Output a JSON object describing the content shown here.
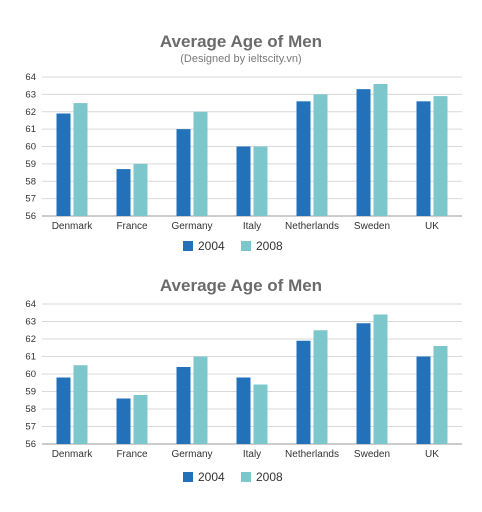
{
  "chart_data": [
    {
      "type": "bar",
      "title": "Average Age of Men",
      "subtitle": "(Designed by ieltscity.vn)",
      "categories": [
        "Denmark",
        "France",
        "Germany",
        "Italy",
        "Netherlands",
        "Sweden",
        "UK"
      ],
      "series": [
        {
          "name": "2004",
          "color": "#2372b9",
          "values": [
            61.9,
            58.7,
            61.0,
            60.0,
            62.6,
            63.3,
            62.6
          ]
        },
        {
          "name": "2008",
          "color": "#7cc7cb",
          "values": [
            62.5,
            59.0,
            62.0,
            60.0,
            63.0,
            63.6,
            62.9
          ]
        }
      ],
      "yticks": [
        56,
        57,
        58,
        59,
        60,
        61,
        62,
        63,
        64
      ],
      "ylim": [
        56,
        64
      ],
      "grid": true,
      "legend_position": "bottom-center"
    },
    {
      "type": "bar",
      "title": "Average Age of Men",
      "categories": [
        "Denmark",
        "France",
        "Germany",
        "Italy",
        "Netherlands",
        "Sweden",
        "UK"
      ],
      "series": [
        {
          "name": "2004",
          "color": "#2372b9",
          "values": [
            59.8,
            58.6,
            60.4,
            59.8,
            61.9,
            62.9,
            61.0
          ]
        },
        {
          "name": "2008",
          "color": "#7cc7cb",
          "values": [
            60.5,
            58.8,
            61.0,
            59.4,
            62.5,
            63.4,
            61.6
          ]
        }
      ],
      "yticks": [
        56,
        57,
        58,
        59,
        60,
        61,
        62,
        63,
        64
      ],
      "ylim": [
        56,
        64
      ],
      "grid": true,
      "legend_position": "bottom-center"
    }
  ]
}
